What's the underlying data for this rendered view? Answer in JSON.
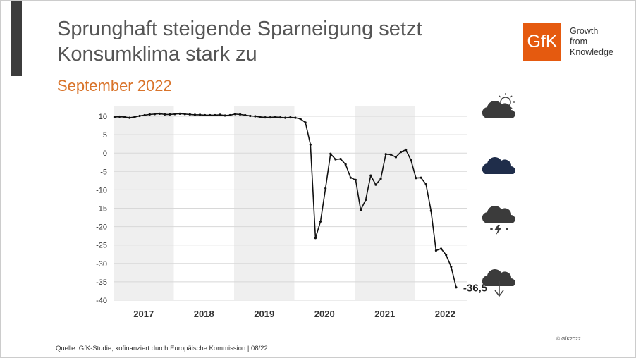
{
  "header": {
    "title_line1": "Sprunghaft steigende Sparneigung setzt",
    "title_line2": "Konsumklima stark zu",
    "subtitle": "September 2022",
    "logo": {
      "mark": "GfK",
      "tagline": [
        "Growth",
        "from",
        "Knowledge"
      ],
      "color": "#e55a0f"
    }
  },
  "footer": {
    "source": "Quelle: GfK-Studie, kofinanziert durch Europäische Kommission | 08/22",
    "copyright": "© GfK2022"
  },
  "icons": [
    "sun-cloud-icon",
    "dark-cloud-icon",
    "storm-cloud-icon",
    "storm-cloud-down-arrow-icon"
  ],
  "chart_data": {
    "type": "line",
    "title": "Sprunghaft steigende Sparneigung setzt Konsumklima stark zu",
    "subtitle": "September 2022",
    "xlabel": "",
    "ylabel": "",
    "ylim": [
      -40,
      10
    ],
    "yticks": [
      10,
      5,
      0,
      -5,
      -10,
      -15,
      -20,
      -25,
      -30,
      -35,
      -40
    ],
    "ytick_labels": [
      "10",
      "5",
      "0",
      "-5",
      "-10",
      "-15",
      "-20",
      "-25",
      "-30",
      "-35",
      "-40"
    ],
    "years": [
      "2017",
      "2018",
      "2019",
      "2020",
      "2021",
      "2022"
    ],
    "shaded_years": [
      "2017",
      "2019",
      "2021"
    ],
    "grid": true,
    "end_label": "-36,5",
    "series": [
      {
        "name": "Konsumklima",
        "frequency": "monthly",
        "start": "2017-01",
        "values": [
          9.8,
          9.9,
          9.8,
          9.6,
          9.8,
          10.1,
          10.3,
          10.5,
          10.6,
          10.7,
          10.5,
          10.5,
          10.6,
          10.7,
          10.6,
          10.5,
          10.4,
          10.4,
          10.3,
          10.3,
          10.3,
          10.4,
          10.2,
          10.3,
          10.6,
          10.5,
          10.3,
          10.1,
          10.0,
          9.8,
          9.7,
          9.7,
          9.8,
          9.7,
          9.6,
          9.7,
          9.6,
          9.3,
          8.3,
          2.3,
          -23.1,
          -18.6,
          -9.6,
          -0.2,
          -1.7,
          -1.6,
          -3.1,
          -6.7,
          -7.3,
          -15.5,
          -12.7,
          -6.1,
          -8.6,
          -7.0,
          -0.3,
          -0.4,
          -1.1,
          0.3,
          0.9,
          -1.9,
          -6.8,
          -6.7,
          -8.5,
          -15.7,
          -26.5,
          -26.0,
          -27.7,
          -30.9,
          -36.5
        ]
      }
    ]
  }
}
